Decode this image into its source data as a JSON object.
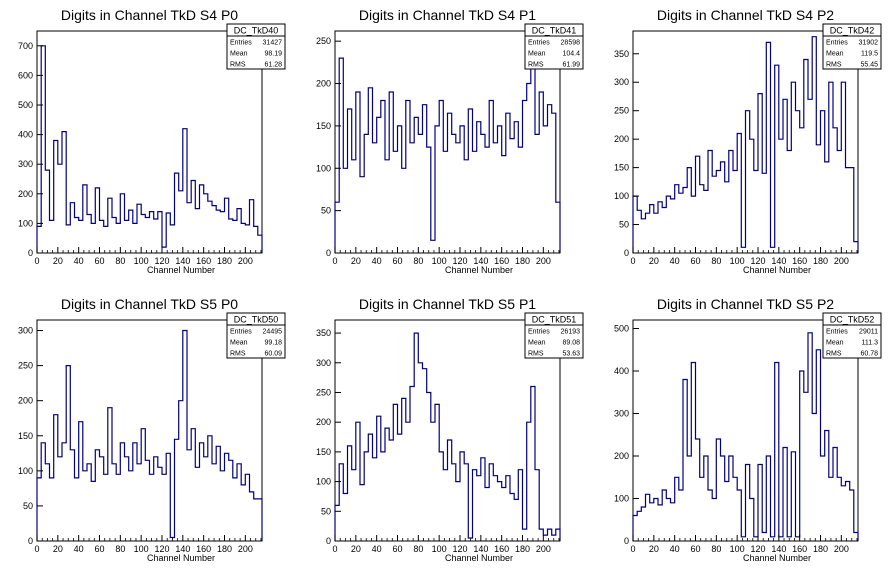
{
  "panels": [
    {
      "title": "Digits in Channel TkD S4 P0",
      "stats": {
        "name": "DC_TkD40",
        "rows": [
          [
            "Entries",
            "31427"
          ],
          [
            "Mean",
            "98.19"
          ],
          [
            "RMS",
            "61.28"
          ]
        ]
      },
      "xlabel": "Channel Number",
      "xticks": [
        "0",
        "20",
        "40",
        "60",
        "80",
        "100",
        "120",
        "140",
        "160",
        "180",
        "200"
      ],
      "yticks": [
        "0",
        "100",
        "200",
        "300",
        "400",
        "500",
        "600",
        "700"
      ]
    },
    {
      "title": "Digits in Channel TkD S4 P1",
      "stats": {
        "name": "DC_TkD41",
        "rows": [
          [
            "Entries",
            "28598"
          ],
          [
            "Mean",
            "104.4"
          ],
          [
            "RMS",
            "61.99"
          ]
        ]
      },
      "xlabel": "Channel Number",
      "xticks": [
        "0",
        "20",
        "40",
        "60",
        "80",
        "100",
        "120",
        "140",
        "160",
        "180",
        "200"
      ],
      "yticks": [
        "0",
        "50",
        "100",
        "150",
        "200",
        "250"
      ]
    },
    {
      "title": "Digits in Channel TkD S4 P2",
      "stats": {
        "name": "DC_TkD42",
        "rows": [
          [
            "Entries",
            "31902"
          ],
          [
            "Mean",
            "119.5"
          ],
          [
            "RMS",
            "55.45"
          ]
        ]
      },
      "xlabel": "Channel Number",
      "xticks": [
        "0",
        "20",
        "40",
        "60",
        "80",
        "100",
        "120",
        "140",
        "160",
        "180",
        "200"
      ],
      "yticks": [
        "0",
        "50",
        "100",
        "150",
        "200",
        "250",
        "300",
        "350"
      ]
    },
    {
      "title": "Digits in Channel TkD S5 P0",
      "stats": {
        "name": "DC_TkD50",
        "rows": [
          [
            "Entries",
            "24495"
          ],
          [
            "Mean",
            "99.18"
          ],
          [
            "RMS",
            "60.09"
          ]
        ]
      },
      "xlabel": "Channel Number",
      "xticks": [
        "0",
        "20",
        "40",
        "60",
        "80",
        "100",
        "120",
        "140",
        "160",
        "180",
        "200"
      ],
      "yticks": [
        "0",
        "50",
        "100",
        "150",
        "200",
        "250",
        "300"
      ]
    },
    {
      "title": "Digits in Channel TkD S5 P1",
      "stats": {
        "name": "DC_TkD51",
        "rows": [
          [
            "Entries",
            "26193"
          ],
          [
            "Mean",
            "89.08"
          ],
          [
            "RMS",
            "53.63"
          ]
        ]
      },
      "xlabel": "Channel Number",
      "xticks": [
        "0",
        "20",
        "40",
        "60",
        "80",
        "100",
        "120",
        "140",
        "160",
        "180",
        "200"
      ],
      "yticks": [
        "0",
        "50",
        "100",
        "150",
        "200",
        "250",
        "300",
        "350"
      ]
    },
    {
      "title": "Digits in Channel TkD S5 P2",
      "stats": {
        "name": "DC_TkD52",
        "rows": [
          [
            "Entries",
            "29011"
          ],
          [
            "Mean",
            "111.3"
          ],
          [
            "RMS",
            "60.78"
          ]
        ]
      },
      "xlabel": "Channel Number",
      "xticks": [
        "0",
        "20",
        "40",
        "60",
        "80",
        "100",
        "120",
        "140",
        "160",
        "180",
        "200"
      ],
      "yticks": [
        "0",
        "100",
        "200",
        "300",
        "400",
        "500"
      ]
    }
  ],
  "chart_data": [
    {
      "type": "line",
      "title": "Digits in Channel TkD S4 P0",
      "xlabel": "Channel Number",
      "ylabel": "",
      "xlim": [
        0,
        216
      ],
      "ylim": [
        0,
        750
      ],
      "color": "#000080",
      "x": [
        0,
        4,
        8,
        12,
        16,
        20,
        24,
        28,
        32,
        36,
        40,
        44,
        48,
        52,
        56,
        60,
        64,
        68,
        72,
        76,
        80,
        84,
        88,
        92,
        96,
        100,
        104,
        108,
        112,
        116,
        120,
        124,
        128,
        132,
        136,
        140,
        144,
        148,
        152,
        156,
        160,
        164,
        168,
        172,
        176,
        180,
        184,
        188,
        192,
        196,
        200,
        204,
        208,
        212
      ],
      "values": [
        90,
        700,
        280,
        110,
        380,
        300,
        410,
        95,
        170,
        120,
        110,
        230,
        130,
        100,
        220,
        110,
        90,
        185,
        120,
        100,
        200,
        110,
        145,
        100,
        165,
        130,
        120,
        140,
        115,
        140,
        20,
        135,
        95,
        270,
        210,
        420,
        170,
        245,
        150,
        230,
        200,
        175,
        160,
        145,
        140,
        185,
        115,
        110,
        150,
        100,
        95,
        180,
        90,
        60
      ]
    },
    {
      "type": "line",
      "title": "Digits in Channel TkD S4 P1",
      "xlabel": "Channel Number",
      "ylabel": "",
      "xlim": [
        0,
        216
      ],
      "ylim": [
        0,
        262
      ],
      "color": "#000080",
      "x": [
        0,
        4,
        8,
        12,
        16,
        20,
        24,
        28,
        32,
        36,
        40,
        44,
        48,
        52,
        56,
        60,
        64,
        68,
        72,
        76,
        80,
        84,
        88,
        92,
        96,
        100,
        104,
        108,
        112,
        116,
        120,
        124,
        128,
        132,
        136,
        140,
        144,
        148,
        152,
        156,
        160,
        164,
        168,
        172,
        176,
        180,
        184,
        188,
        192,
        196,
        200,
        204,
        208,
        212
      ],
      "values": [
        60,
        230,
        100,
        170,
        110,
        190,
        90,
        140,
        195,
        130,
        160,
        180,
        110,
        190,
        120,
        150,
        100,
        180,
        130,
        160,
        140,
        175,
        125,
        15,
        150,
        180,
        120,
        165,
        140,
        130,
        150,
        110,
        170,
        120,
        155,
        140,
        125,
        180,
        130,
        150,
        115,
        165,
        135,
        155,
        125,
        180,
        200,
        230,
        140,
        190,
        150,
        175,
        165,
        60
      ]
    },
    {
      "type": "line",
      "title": "Digits in Channel TkD S4 P2",
      "xlabel": "Channel Number",
      "ylabel": "",
      "xlim": [
        0,
        216
      ],
      "ylim": [
        0,
        390
      ],
      "color": "#000080",
      "x": [
        0,
        4,
        8,
        12,
        16,
        20,
        24,
        28,
        32,
        36,
        40,
        44,
        48,
        52,
        56,
        60,
        64,
        68,
        72,
        76,
        80,
        84,
        88,
        92,
        96,
        100,
        104,
        108,
        112,
        116,
        120,
        124,
        128,
        132,
        136,
        140,
        144,
        148,
        152,
        156,
        160,
        164,
        168,
        172,
        176,
        180,
        184,
        188,
        192,
        196,
        200,
        204,
        208,
        212
      ],
      "values": [
        100,
        75,
        60,
        70,
        85,
        70,
        90,
        80,
        100,
        95,
        120,
        105,
        115,
        150,
        100,
        170,
        120,
        110,
        180,
        135,
        145,
        160,
        125,
        180,
        145,
        210,
        10,
        250,
        200,
        145,
        280,
        140,
        370,
        10,
        330,
        200,
        270,
        180,
        300,
        250,
        220,
        340,
        270,
        380,
        190,
        250,
        160,
        300,
        220,
        180,
        300,
        150,
        150,
        20
      ]
    },
    {
      "type": "line",
      "title": "Digits in Channel TkD S5 P0",
      "xlabel": "Channel Number",
      "ylabel": "",
      "xlim": [
        0,
        216
      ],
      "ylim": [
        0,
        315
      ],
      "color": "#000080",
      "x": [
        0,
        4,
        8,
        12,
        16,
        20,
        24,
        28,
        32,
        36,
        40,
        44,
        48,
        52,
        56,
        60,
        64,
        68,
        72,
        76,
        80,
        84,
        88,
        92,
        96,
        100,
        104,
        108,
        112,
        116,
        120,
        124,
        128,
        132,
        136,
        140,
        144,
        148,
        152,
        156,
        160,
        164,
        168,
        172,
        176,
        180,
        184,
        188,
        192,
        196,
        200,
        204,
        208,
        212
      ],
      "values": [
        90,
        140,
        110,
        90,
        180,
        120,
        140,
        250,
        130,
        90,
        170,
        100,
        110,
        85,
        130,
        120,
        95,
        190,
        110,
        95,
        140,
        120,
        100,
        140,
        110,
        160,
        115,
        95,
        120,
        105,
        95,
        125,
        5,
        145,
        200,
        300,
        130,
        160,
        105,
        140,
        120,
        150,
        110,
        135,
        100,
        125,
        115,
        90,
        110,
        80,
        95,
        70,
        60,
        60
      ]
    },
    {
      "type": "line",
      "title": "Digits in Channel TkD S5 P1",
      "xlabel": "Channel Number",
      "ylabel": "",
      "xlim": [
        0,
        216
      ],
      "ylim": [
        0,
        372
      ],
      "color": "#000080",
      "x": [
        0,
        4,
        8,
        12,
        16,
        20,
        24,
        28,
        32,
        36,
        40,
        44,
        48,
        52,
        56,
        60,
        64,
        68,
        72,
        76,
        80,
        84,
        88,
        92,
        96,
        100,
        104,
        108,
        112,
        116,
        120,
        124,
        128,
        132,
        136,
        140,
        144,
        148,
        152,
        156,
        160,
        164,
        168,
        172,
        176,
        180,
        184,
        188,
        192,
        196,
        200,
        204,
        208,
        212
      ],
      "values": [
        60,
        130,
        80,
        160,
        120,
        200,
        95,
        150,
        180,
        140,
        210,
        150,
        190,
        170,
        230,
        180,
        240,
        200,
        260,
        350,
        300,
        290,
        250,
        200,
        230,
        150,
        120,
        170,
        130,
        100,
        150,
        130,
        5,
        120,
        110,
        140,
        90,
        130,
        110,
        100,
        90,
        110,
        80,
        70,
        120,
        20,
        200,
        260,
        120,
        20,
        10,
        20,
        10,
        20
      ]
    },
    {
      "type": "line",
      "title": "Digits in Channel TkD S5 P2",
      "xlabel": "Channel Number",
      "ylabel": "",
      "xlim": [
        0,
        216
      ],
      "ylim": [
        0,
        520
      ],
      "color": "#000080",
      "x": [
        0,
        4,
        8,
        12,
        16,
        20,
        24,
        28,
        32,
        36,
        40,
        44,
        48,
        52,
        56,
        60,
        64,
        68,
        72,
        76,
        80,
        84,
        88,
        92,
        96,
        100,
        104,
        108,
        112,
        116,
        120,
        124,
        128,
        132,
        136,
        140,
        144,
        148,
        152,
        156,
        160,
        164,
        168,
        172,
        176,
        180,
        184,
        188,
        192,
        196,
        200,
        204,
        208,
        212
      ],
      "values": [
        60,
        70,
        80,
        110,
        90,
        100,
        85,
        120,
        100,
        90,
        150,
        120,
        380,
        200,
        420,
        240,
        150,
        200,
        120,
        100,
        240,
        200,
        140,
        200,
        150,
        120,
        10,
        180,
        100,
        10,
        180,
        20,
        200,
        10,
        420,
        10,
        220,
        10,
        210,
        10,
        400,
        350,
        490,
        300,
        450,
        200,
        260,
        150,
        220,
        150,
        130,
        140,
        120,
        20
      ]
    }
  ]
}
